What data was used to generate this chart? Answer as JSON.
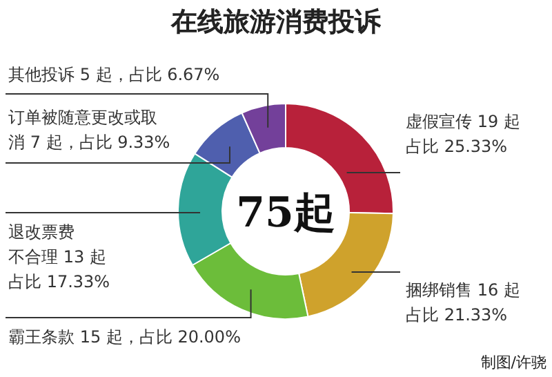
{
  "chart_data": {
    "type": "donut",
    "title": "在线旅游消费投诉",
    "categories": [
      "虚假宣传 19 起占比 25.33%",
      "捆绑销售 16 起占比 21.33%",
      "霸王条款 15 起，占比 20.00%",
      "退改票费不合理 13 起占比 17.33%",
      "订单被随意更改或取消 7 起，占比 9.33%",
      "其他投诉 5 起，占比 6.67%"
    ],
    "values": [
      19,
      16,
      15,
      13,
      7,
      5
    ],
    "colors": [
      "#b8213a",
      "#cfa22c",
      "#6cbd3a",
      "#2fa599",
      "#4f5fae",
      "#73409a"
    ],
    "annotations": [
      "75起",
      "制图/许骁"
    ]
  }
}
